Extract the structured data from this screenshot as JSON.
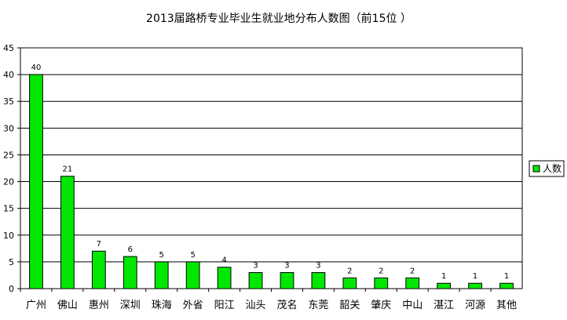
{
  "chart_data": {
    "type": "bar",
    "title": "2013届路桥专业毕业生就业地分布人数图（前15位 ）",
    "xlabel": "",
    "ylabel": "",
    "categories": [
      "广州",
      "佛山",
      "惠州",
      "深圳",
      "珠海",
      "外省",
      "阳江",
      "汕头",
      "茂名",
      "东莞",
      "韶关",
      "肇庆",
      "中山",
      "湛江",
      "河源",
      "其他"
    ],
    "series": [
      {
        "name": "人数",
        "values": [
          40,
          21,
          7,
          6,
          5,
          5,
          4,
          3,
          3,
          3,
          2,
          2,
          2,
          1,
          1,
          1
        ]
      }
    ],
    "ylim": [
      0,
      45
    ],
    "yticks": [
      0,
      5,
      10,
      15,
      20,
      25,
      30,
      35,
      40,
      45
    ],
    "grid": true,
    "legend": "right",
    "colors": {
      "bar_fill": "#00e800",
      "bar_stroke": "#000000",
      "gridline": "#000000",
      "plot_background": "#ffffff"
    }
  }
}
